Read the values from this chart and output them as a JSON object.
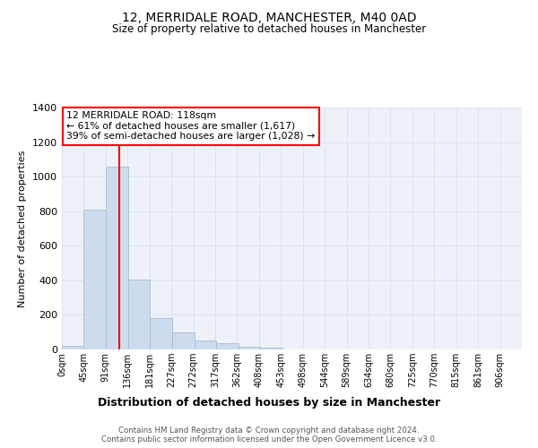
{
  "title_line1": "12, MERRIDALE ROAD, MANCHESTER, M40 0AD",
  "title_line2": "Size of property relative to detached houses in Manchester",
  "xlabel": "Distribution of detached houses by size in Manchester",
  "ylabel": "Number of detached properties",
  "bar_left_edges": [
    0,
    45,
    91,
    136,
    181,
    227,
    272,
    317,
    362,
    408,
    453,
    498,
    544,
    589,
    634,
    680,
    725,
    770,
    815,
    861
  ],
  "bar_heights": [
    20,
    810,
    1060,
    405,
    182,
    100,
    52,
    35,
    15,
    8,
    0,
    0,
    0,
    0,
    0,
    0,
    0,
    0,
    0,
    0
  ],
  "bin_width": 45,
  "bar_color": "#ccdcee",
  "bar_edge_color": "#aabcce",
  "grid_color": "#d8e4f0",
  "red_line_x": 118,
  "ylim": [
    0,
    1400
  ],
  "yticks": [
    0,
    200,
    400,
    600,
    800,
    1000,
    1200,
    1400
  ],
  "xtick_labels": [
    "0sqm",
    "45sqm",
    "91sqm",
    "136sqm",
    "181sqm",
    "227sqm",
    "272sqm",
    "317sqm",
    "362sqm",
    "408sqm",
    "453sqm",
    "498sqm",
    "544sqm",
    "589sqm",
    "634sqm",
    "680sqm",
    "725sqm",
    "770sqm",
    "815sqm",
    "861sqm",
    "906sqm"
  ],
  "annotation_title": "12 MERRIDALE ROAD: 118sqm",
  "annotation_line1": "← 61% of detached houses are smaller (1,617)",
  "annotation_line2": "39% of semi-detached houses are larger (1,028) →",
  "annotation_box_color": "white",
  "annotation_box_edgecolor": "red",
  "footer_line1": "Contains HM Land Registry data © Crown copyright and database right 2024.",
  "footer_line2": "Contains public sector information licensed under the Open Government Licence v3.0.",
  "bg_color": "white",
  "plot_bg_color": "#eef2f8"
}
